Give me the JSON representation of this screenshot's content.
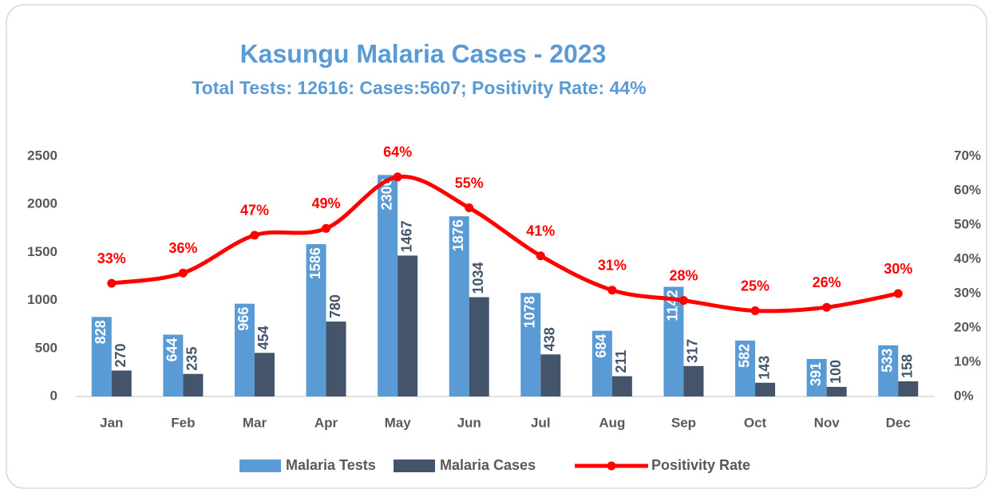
{
  "chart_data": {
    "type": "bar_line",
    "title": "Kasungu Malaria Cases - 2023",
    "subtitle": "Total Tests: 12616: Cases:5607; Positivity Rate: 44%",
    "categories": [
      "Jan",
      "Feb",
      "Mar",
      "Apr",
      "May",
      "Jun",
      "Jul",
      "Aug",
      "Sep",
      "Oct",
      "Nov",
      "Dec"
    ],
    "series": [
      {
        "name": "Malaria Tests",
        "type": "bar",
        "color": "#5b9bd5",
        "values": [
          828,
          644,
          966,
          1586,
          2306,
          1876,
          1078,
          684,
          1142,
          582,
          391,
          533
        ]
      },
      {
        "name": "Malaria Cases",
        "type": "bar",
        "color": "#44546a",
        "values": [
          270,
          235,
          454,
          780,
          1467,
          1034,
          438,
          211,
          317,
          143,
          100,
          158
        ]
      },
      {
        "name": "Positivity Rate",
        "type": "line",
        "axis": "y2",
        "color": "#ff0000",
        "values": [
          33,
          36,
          47,
          49,
          64,
          55,
          41,
          31,
          28,
          25,
          26,
          30
        ],
        "value_labels": [
          "33%",
          "36%",
          "47%",
          "49%",
          "64%",
          "55%",
          "41%",
          "31%",
          "28%",
          "25%",
          "26%",
          "30%"
        ]
      }
    ],
    "ylim": [
      0,
      2500
    ],
    "yticks": [
      0,
      500,
      1000,
      1500,
      2000,
      2500
    ],
    "y2lim": [
      0,
      70
    ],
    "y2ticks": [
      {
        "value": 0,
        "label": "0%"
      },
      {
        "value": 10,
        "label": "10%"
      },
      {
        "value": 20,
        "label": "20%"
      },
      {
        "value": 30,
        "label": "30%"
      },
      {
        "value": 40,
        "label": "40%"
      },
      {
        "value": 50,
        "label": "50%"
      },
      {
        "value": 60,
        "label": "60%"
      },
      {
        "value": 70,
        "label": "70%"
      }
    ],
    "grid": false,
    "legend": "bottom"
  }
}
